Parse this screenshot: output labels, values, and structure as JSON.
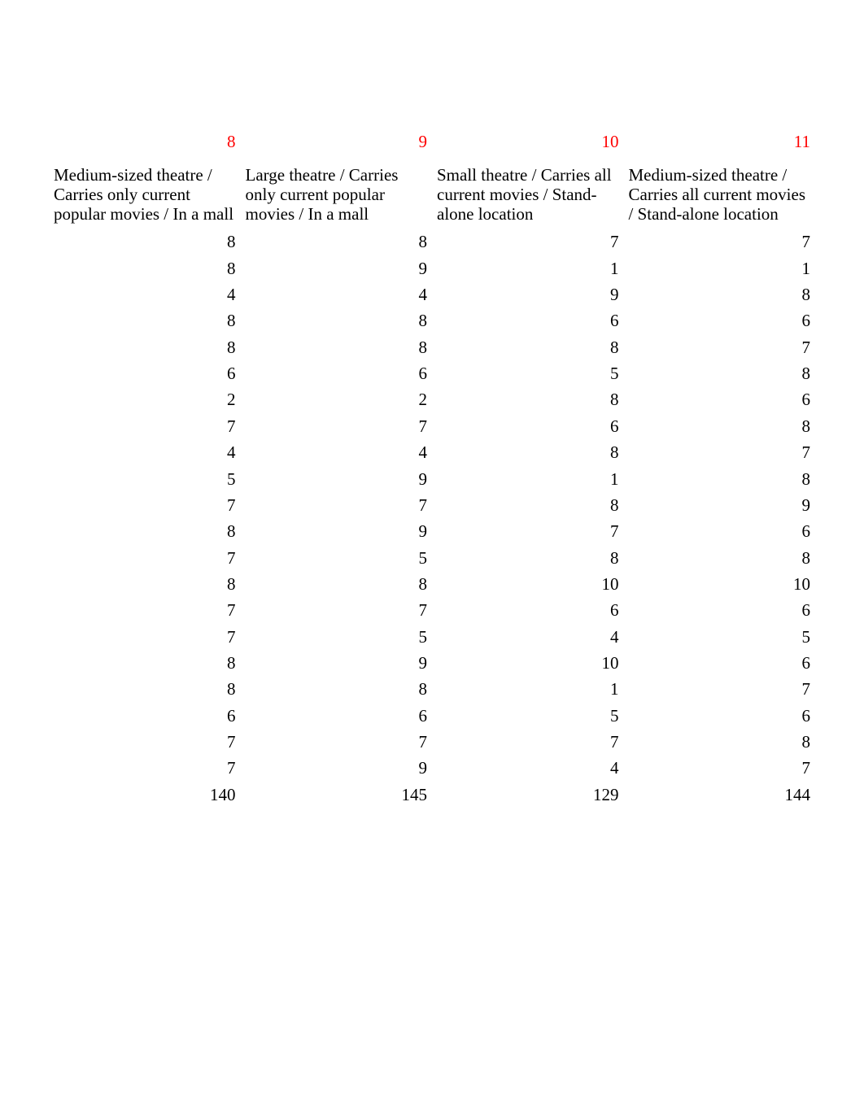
{
  "table": {
    "type": "table",
    "font_family": "Times New Roman",
    "data_fontsize_pt": 16,
    "header_fontsize_pt": 16,
    "text_color": "#000000",
    "accent_color": "#ff0000",
    "background_color": "#ffffff",
    "columns": [
      {
        "red_header": "8",
        "label": "Medium-sized theatre / Carries only current popular movies / In a mall",
        "align": "right"
      },
      {
        "red_header": "9",
        "label": "Large theatre / Carries only current popular movies / In a mall",
        "align": "right"
      },
      {
        "red_header": "10",
        "label": "Small theatre / Carries all current movies / Stand-alone location",
        "align": "right"
      },
      {
        "red_header": "11",
        "label": "Medium-sized theatre / Carries all current movies / Stand-alone location",
        "align": "right"
      }
    ],
    "rows": [
      [
        "8",
        "8",
        "7",
        "7"
      ],
      [
        "8",
        "9",
        "1",
        "1"
      ],
      [
        "4",
        "4",
        "9",
        "8"
      ],
      [
        "8",
        "8",
        "6",
        "6"
      ],
      [
        "8",
        "8",
        "8",
        "7"
      ],
      [
        "6",
        "6",
        "5",
        "8"
      ],
      [
        "2",
        "2",
        "8",
        "6"
      ],
      [
        "7",
        "7",
        "6",
        "8"
      ],
      [
        "4",
        "4",
        "8",
        "7"
      ],
      [
        "5",
        "9",
        "1",
        "8"
      ],
      [
        "7",
        "7",
        "8",
        "9"
      ],
      [
        "8",
        "9",
        "7",
        "6"
      ],
      [
        "7",
        "5",
        "8",
        "8"
      ],
      [
        "8",
        "8",
        "10",
        "10"
      ],
      [
        "7",
        "7",
        "6",
        "6"
      ],
      [
        "7",
        "5",
        "4",
        "5"
      ],
      [
        "8",
        "9",
        "10",
        "6"
      ],
      [
        "8",
        "8",
        "1",
        "7"
      ],
      [
        "6",
        "6",
        "5",
        "6"
      ],
      [
        "7",
        "7",
        "7",
        "8"
      ],
      [
        "7",
        "9",
        "4",
        "7"
      ],
      [
        "140",
        "145",
        "129",
        "144"
      ]
    ]
  }
}
